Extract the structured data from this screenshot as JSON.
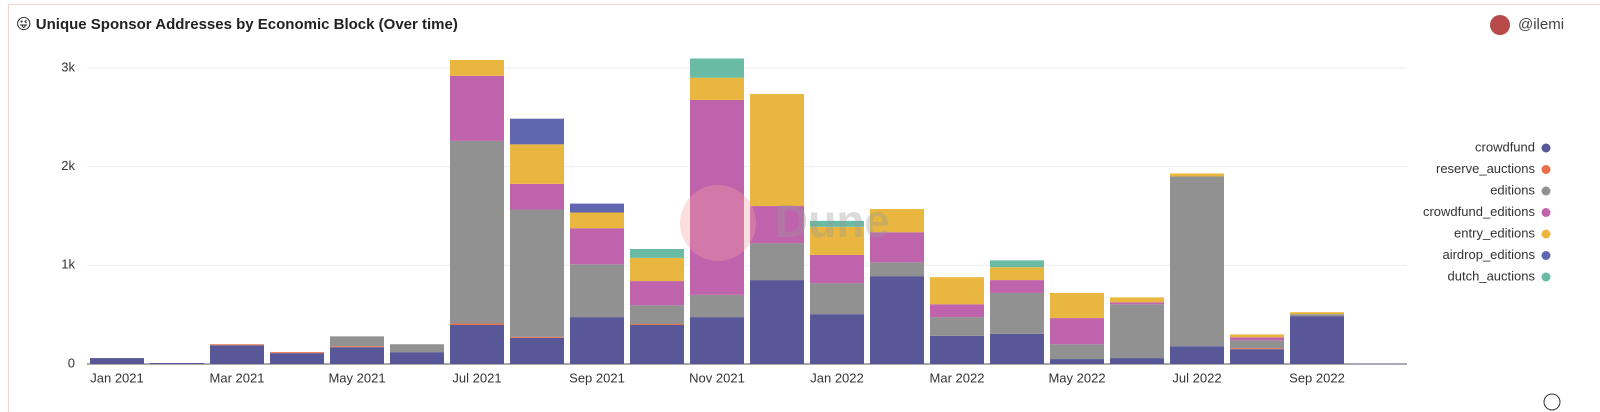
{
  "chart_data": {
    "type": "stacked_bar",
    "title": "😜 Unique Sponsor Addresses by Economic Block (Over time)",
    "author": "@ilemi",
    "watermark": "Dune",
    "categories": [
      "Jan 2021",
      null,
      "Mar 2021",
      null,
      "May 2021",
      null,
      "Jul 2021",
      null,
      "Sep 2021",
      null,
      "Nov 2021",
      null,
      "Jan 2022",
      null,
      "Mar 2022",
      null,
      "May 2022",
      null,
      "Jul 2022",
      null,
      "Sep 2022",
      null
    ],
    "series": [
      {
        "name": "crowdfund",
        "color": "#585797",
        "values": [
          60,
          10,
          190,
          110,
          170,
          120,
          395,
          265,
          475,
          395,
          475,
          850,
          505,
          890,
          285,
          305,
          50,
          60,
          180,
          150,
          485,
          5
        ]
      },
      {
        "name": "reserve_auctions",
        "color": "#e8704c",
        "values": [
          0,
          0,
          10,
          10,
          10,
          0,
          15,
          10,
          0,
          10,
          0,
          0,
          0,
          0,
          0,
          0,
          0,
          0,
          0,
          10,
          0,
          0
        ]
      },
      {
        "name": "editions",
        "color": "#919191",
        "values": [
          0,
          0,
          0,
          0,
          100,
          80,
          1850,
          1290,
          535,
          190,
          225,
          375,
          315,
          140,
          190,
          415,
          150,
          545,
          1720,
          80,
          20,
          0
        ]
      },
      {
        "name": "crowdfund_editions",
        "color": "#c063ad",
        "values": [
          0,
          0,
          0,
          0,
          0,
          0,
          660,
          260,
          365,
          245,
          1975,
          375,
          285,
          305,
          130,
          130,
          265,
          20,
          0,
          30,
          0,
          0
        ]
      },
      {
        "name": "entry_editions",
        "color": "#e9b73f",
        "values": [
          0,
          0,
          0,
          0,
          0,
          0,
          160,
          400,
          160,
          235,
          225,
          1135,
          285,
          235,
          275,
          130,
          255,
          50,
          30,
          30,
          20,
          0
        ]
      },
      {
        "name": "airdrop_editions",
        "color": "#6067b0",
        "values": [
          0,
          0,
          0,
          0,
          0,
          0,
          0,
          260,
          90,
          0,
          0,
          0,
          0,
          0,
          0,
          0,
          0,
          0,
          0,
          0,
          0,
          0
        ]
      },
      {
        "name": "dutch_auctions",
        "color": "#6abba3",
        "values": [
          0,
          0,
          0,
          0,
          0,
          0,
          0,
          0,
          0,
          90,
          195,
          0,
          60,
          0,
          0,
          70,
          0,
          0,
          0,
          0,
          0,
          0
        ]
      }
    ],
    "ylim": [
      0,
      3100
    ],
    "yticks": [
      0,
      {
        "value": 1000,
        "label": "1k"
      },
      {
        "value": 2000,
        "label": "2k"
      },
      {
        "value": 3000,
        "label": "3k"
      }
    ],
    "grid": true,
    "legend": "right"
  }
}
